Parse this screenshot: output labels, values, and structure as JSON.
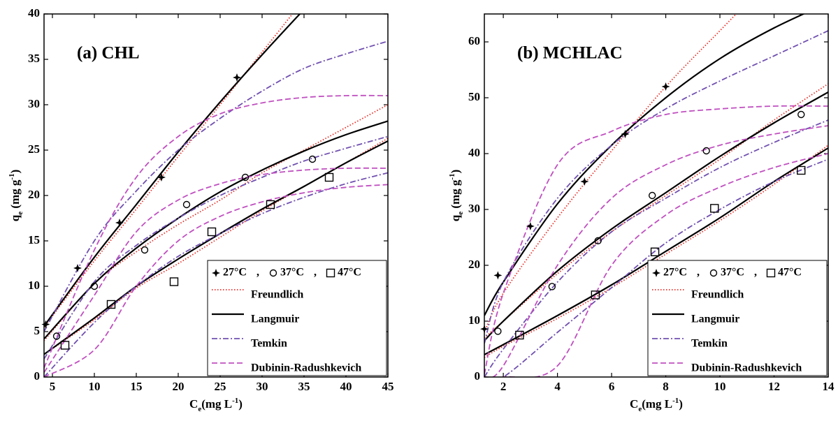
{
  "chart_data": [
    {
      "type": "scatter",
      "title": "(a) CHL",
      "xlabel": [
        {
          "text": "C"
        },
        {
          "text": "e",
          "shift": "sub"
        },
        {
          "text": "(mg L"
        },
        {
          "text": "-1",
          "shift": "sup"
        },
        {
          "text": ")"
        }
      ],
      "ylabel": [
        {
          "text": "q"
        },
        {
          "text": "e",
          "shift": "sub"
        },
        {
          "text": " (mg g"
        },
        {
          "text": "-1",
          "shift": "sup"
        },
        {
          "text": ")"
        }
      ],
      "xlim": [
        4,
        45
      ],
      "ylim": [
        0,
        40
      ],
      "xticks": [
        5,
        10,
        15,
        20,
        25,
        30,
        35,
        40,
        45
      ],
      "yticks": [
        0,
        5,
        10,
        15,
        20,
        25,
        30,
        35,
        40
      ],
      "legend": "lower right",
      "legend_separator": ",",
      "point_series": [
        {
          "name": "27°C",
          "marker": "star",
          "x": [
            4.2,
            8,
            13,
            18,
            27
          ],
          "values": [
            5.8,
            12,
            17,
            22,
            33
          ]
        },
        {
          "name": "37°C",
          "marker": "circle",
          "x": [
            5.5,
            10,
            16,
            21,
            28,
            36
          ],
          "values": [
            4.5,
            10,
            14,
            19,
            22,
            24
          ]
        },
        {
          "name": "47°C",
          "marker": "square",
          "x": [
            6.5,
            12,
            19.5,
            24,
            31,
            38
          ],
          "values": [
            3.5,
            8,
            10.5,
            16,
            19,
            22
          ]
        }
      ],
      "fits": [
        {
          "name": "Freundlich",
          "color": "#e8312a",
          "dash": "1.5,2.5",
          "curves": [
            {
              "x": [
                4,
                10,
                15,
                20,
                25,
                30,
                35
              ],
              "values": [
                5.5,
                12.8,
                18.5,
                24.3,
                30,
                35.8,
                41.6
              ]
            },
            {
              "x": [
                4,
                10,
                15,
                20,
                25,
                30,
                35,
                40,
                45
              ],
              "values": [
                4,
                10.3,
                13.8,
                16.8,
                19.5,
                22.5,
                25,
                27.5,
                30
              ]
            },
            {
              "x": [
                4,
                10,
                15,
                20,
                25,
                30,
                35,
                40,
                45
              ],
              "values": [
                2.5,
                6.3,
                9.8,
                12.5,
                15.4,
                18.3,
                21,
                23.6,
                26.3
              ]
            }
          ]
        },
        {
          "name": "Langmuir",
          "color": "#000000",
          "dash": "none",
          "curves": [
            {
              "x": [
                4,
                10,
                15,
                20,
                25,
                30,
                35
              ],
              "values": [
                5.6,
                13.2,
                19,
                24.8,
                30.3,
                35.5,
                40.5
              ]
            },
            {
              "x": [
                4,
                10,
                15,
                20,
                25,
                30,
                35,
                40,
                45
              ],
              "values": [
                4.2,
                10.3,
                14.2,
                17.5,
                20.4,
                22.8,
                24.9,
                26.7,
                28.2
              ]
            },
            {
              "x": [
                4,
                10,
                15,
                20,
                25,
                30,
                35,
                40,
                45
              ],
              "values": [
                2.5,
                6.5,
                10,
                13,
                15.8,
                18.5,
                21,
                23.6,
                26
              ]
            }
          ]
        },
        {
          "name": "Temkin",
          "color": "#7050b0",
          "dash": "8,3,2,3",
          "curves": [
            {
              "x": [
                4,
                10,
                15,
                20,
                25,
                30,
                35,
                40,
                45
              ],
              "values": [
                5,
                15,
                20.5,
                25,
                28.5,
                31.5,
                34,
                35.6,
                37
              ]
            },
            {
              "x": [
                4,
                10,
                15,
                20,
                25,
                30,
                35,
                40,
                45
              ],
              "values": [
                2,
                10.5,
                14.5,
                17.5,
                20,
                22,
                23.8,
                25.2,
                26.5
              ]
            },
            {
              "x": [
                4,
                10,
                15,
                20,
                25,
                30,
                35,
                40,
                45
              ],
              "values": [
                0,
                6,
                10,
                13.3,
                15.8,
                18,
                19.8,
                21.3,
                22.5
              ]
            }
          ]
        },
        {
          "name": "Dubinin-Radushkevich",
          "color": "#c050c0",
          "dash": "8,4",
          "curves": [
            {
              "x": [
                4,
                10,
                15,
                20,
                25,
                30,
                35,
                40,
                45
              ],
              "values": [
                1,
                14,
                22,
                26.5,
                29,
                30.2,
                30.8,
                31,
                31
              ]
            },
            {
              "x": [
                4,
                10,
                15,
                20,
                25,
                30,
                35,
                40,
                45
              ],
              "values": [
                0.5,
                9,
                16,
                19.5,
                21.3,
                22.3,
                22.8,
                23,
                23
              ]
            },
            {
              "x": [
                4,
                10,
                15,
                20,
                25,
                30,
                35,
                40,
                45
              ],
              "values": [
                0,
                3,
                10,
                15,
                17.7,
                19.3,
                20.3,
                20.9,
                21.2
              ]
            }
          ]
        }
      ]
    },
    {
      "type": "scatter",
      "title": "(b) MCHLAC",
      "xlabel": [
        {
          "text": "C"
        },
        {
          "text": "e",
          "shift": "sub"
        },
        {
          "text": "(mg L"
        },
        {
          "text": "-1",
          "shift": "sup"
        },
        {
          "text": ")"
        }
      ],
      "ylabel": [
        {
          "text": "q"
        },
        {
          "text": "e",
          "shift": "sub"
        },
        {
          "text": " (mg g"
        },
        {
          "text": "-1",
          "shift": "sup"
        },
        {
          "text": ")"
        }
      ],
      "xlim": [
        1.3,
        14
      ],
      "ylim": [
        0,
        65
      ],
      "xticks": [
        2,
        4,
        6,
        8,
        10,
        12,
        14
      ],
      "yticks": [
        0,
        10,
        20,
        30,
        40,
        50,
        60
      ],
      "legend": "lower right",
      "legend_separator": ",",
      "point_series": [
        {
          "name": "27°C",
          "marker": "star",
          "x": [
            1.3,
            1.8,
            3,
            5,
            6.5,
            8
          ],
          "values": [
            8.6,
            18.2,
            27,
            35,
            43.5,
            52
          ]
        },
        {
          "name": "37°C",
          "marker": "circle",
          "x": [
            1.8,
            3.8,
            5.5,
            7.5,
            9.5,
            13
          ],
          "values": [
            8.2,
            16.2,
            24.4,
            32.5,
            40.5,
            47
          ]
        },
        {
          "name": "47°C",
          "marker": "square",
          "x": [
            2.6,
            5.4,
            7.6,
            9.8,
            13
          ],
          "values": [
            7.5,
            14.7,
            22.4,
            30.2,
            37
          ]
        }
      ],
      "fits": [
        {
          "name": "Freundlich",
          "color": "#e8312a",
          "dash": "1.5,2.5",
          "curves": [
            {
              "x": [
                1.3,
                2,
                4,
                6,
                8,
                10,
                11
              ],
              "values": [
                8,
                15,
                28.5,
                40.5,
                52,
                62,
                67
              ]
            },
            {
              "x": [
                1.3,
                2,
                4,
                6,
                8,
                10,
                12,
                14
              ],
              "values": [
                7,
                10,
                18.5,
                26,
                32.5,
                39,
                46,
                52.5
              ]
            },
            {
              "x": [
                1.3,
                2,
                4,
                6,
                8,
                10,
                12,
                14
              ],
              "values": [
                3.5,
                5.5,
                10.5,
                16,
                22,
                28,
                34.5,
                41.5
              ]
            }
          ]
        },
        {
          "name": "Langmuir",
          "color": "#000000",
          "dash": "none",
          "curves": [
            {
              "x": [
                1.3,
                2,
                4,
                6,
                8,
                10,
                12,
                14
              ],
              "values": [
                11,
                17,
                31,
                41.5,
                50,
                57,
                62.5,
                67
              ]
            },
            {
              "x": [
                1.3,
                2,
                4,
                6,
                8,
                10,
                12,
                14
              ],
              "values": [
                6.5,
                10,
                19,
                26.5,
                33,
                39.5,
                45.5,
                51
              ]
            },
            {
              "x": [
                1.3,
                2,
                4,
                6,
                8,
                10,
                12,
                14
              ],
              "values": [
                4,
                5.8,
                11,
                16.5,
                22.5,
                28.5,
                35,
                41
              ]
            }
          ]
        },
        {
          "name": "Temkin",
          "color": "#7050b0",
          "dash": "8,3,2,3",
          "curves": [
            {
              "x": [
                1.3,
                2,
                4,
                6,
                8,
                10,
                12,
                14
              ],
              "values": [
                6,
                17,
                32,
                41.5,
                48,
                53,
                57.5,
                62
              ]
            },
            {
              "x": [
                1.3,
                2,
                4,
                6,
                8,
                10,
                12,
                14
              ],
              "values": [
                0,
                5,
                17,
                26,
                32,
                37.5,
                42,
                46
              ]
            },
            {
              "x": [
                1.3,
                2,
                4,
                6,
                8,
                10,
                12,
                14
              ],
              "values": [
                0,
                0,
                8,
                16,
                24,
                30,
                35,
                39
              ]
            }
          ]
        },
        {
          "name": "Dubinin-Radushkevich",
          "color": "#c050c0",
          "dash": "8,4",
          "curves": [
            {
              "x": [
                1.3,
                2,
                4,
                6,
                8,
                10,
                12,
                14
              ],
              "values": [
                0.5,
                15,
                38,
                44,
                47,
                48,
                48.5,
                48.5
              ]
            },
            {
              "x": [
                1.3,
                2,
                4,
                6,
                8,
                10,
                12,
                14
              ],
              "values": [
                0,
                2,
                20,
                32,
                38,
                41.5,
                43.5,
                45
              ]
            },
            {
              "x": [
                1.3,
                2,
                4,
                6,
                8,
                10,
                12,
                14
              ],
              "values": [
                0,
                0,
                2,
                20,
                29,
                34,
                37.5,
                40
              ]
            }
          ]
        }
      ]
    }
  ]
}
